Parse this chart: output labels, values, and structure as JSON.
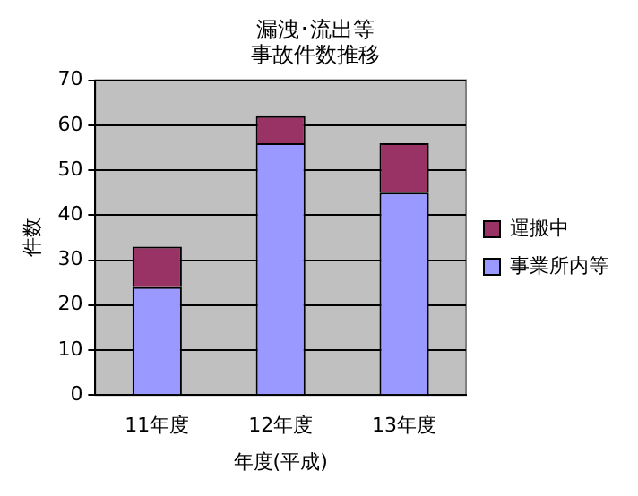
{
  "chart_data": {
    "type": "bar",
    "title": "漏洩･流出等事故件数推移",
    "xlabel": "年度(平成)",
    "ylabel": "件数",
    "categories": [
      "11年度",
      "12年度",
      "13年度"
    ],
    "stacked": true,
    "series": [
      {
        "name": "事業所内等",
        "color": "#9999ff",
        "values": [
          24,
          56,
          45
        ]
      },
      {
        "name": "運搬中",
        "color": "#993366",
        "values": [
          9,
          6,
          11
        ]
      }
    ],
    "ylim": [
      0,
      70
    ],
    "yticks": [
      0,
      10,
      20,
      30,
      40,
      50,
      60,
      70
    ],
    "grid": "y",
    "legend": "right"
  }
}
